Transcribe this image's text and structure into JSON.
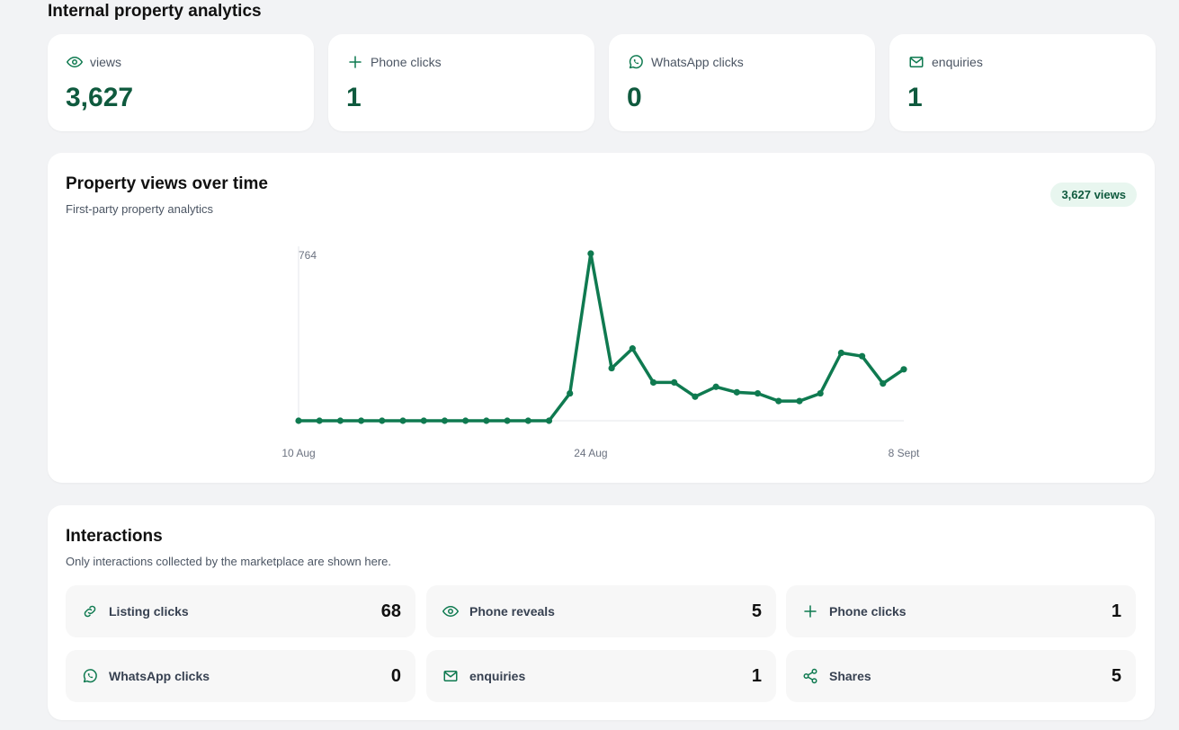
{
  "page": {
    "title": "Internal property analytics"
  },
  "theme": {
    "accent": "#0f7a50",
    "value_color": "#0f5a3e",
    "badge_bg": "#e8f6ef"
  },
  "stats": [
    {
      "icon": "eye-icon",
      "label": "views",
      "value": "3,627"
    },
    {
      "icon": "plus-icon",
      "label": "Phone clicks",
      "value": "1"
    },
    {
      "icon": "whatsapp-icon",
      "label": "WhatsApp clicks",
      "value": "0"
    },
    {
      "icon": "mail-icon",
      "label": "enquiries",
      "value": "1"
    }
  ],
  "chart_panel": {
    "title": "Property views over time",
    "subtitle": "First-party property analytics",
    "badge": "3,627 views"
  },
  "chart_data": {
    "type": "line",
    "title": "Property views over time",
    "x": [
      "10 Aug",
      "11 Aug",
      "12 Aug",
      "13 Aug",
      "14 Aug",
      "15 Aug",
      "16 Aug",
      "17 Aug",
      "18 Aug",
      "19 Aug",
      "20 Aug",
      "21 Aug",
      "22 Aug",
      "23 Aug",
      "24 Aug",
      "25 Aug",
      "26 Aug",
      "27 Aug",
      "28 Aug",
      "29 Aug",
      "30 Aug",
      "31 Aug",
      "1 Sept",
      "2 Sept",
      "3 Sept",
      "4 Sept",
      "5 Sept",
      "6 Sept",
      "7 Sept",
      "8 Sept"
    ],
    "x_ticks": [
      "10 Aug",
      "24 Aug",
      "8 Sept"
    ],
    "y_ticks": [
      "764"
    ],
    "ylim": [
      0,
      764
    ],
    "values": [
      0,
      0,
      0,
      0,
      0,
      0,
      0,
      0,
      0,
      0,
      0,
      0,
      0,
      125,
      764,
      240,
      330,
      175,
      175,
      110,
      155,
      130,
      125,
      90,
      90,
      125,
      310,
      295,
      170,
      235
    ],
    "grid": false,
    "color": "#0f7a50"
  },
  "interactions": {
    "title": "Interactions",
    "subtitle": "Only interactions collected by the marketplace are shown here.",
    "items": [
      {
        "icon": "link-icon",
        "label": "Listing clicks",
        "value": "68"
      },
      {
        "icon": "eye-icon",
        "label": "Phone reveals",
        "value": "5"
      },
      {
        "icon": "plus-icon",
        "label": "Phone clicks",
        "value": "1"
      },
      {
        "icon": "whatsapp-icon",
        "label": "WhatsApp clicks",
        "value": "0"
      },
      {
        "icon": "mail-icon",
        "label": "enquiries",
        "value": "1"
      },
      {
        "icon": "share-icon",
        "label": "Shares",
        "value": "5"
      }
    ]
  }
}
